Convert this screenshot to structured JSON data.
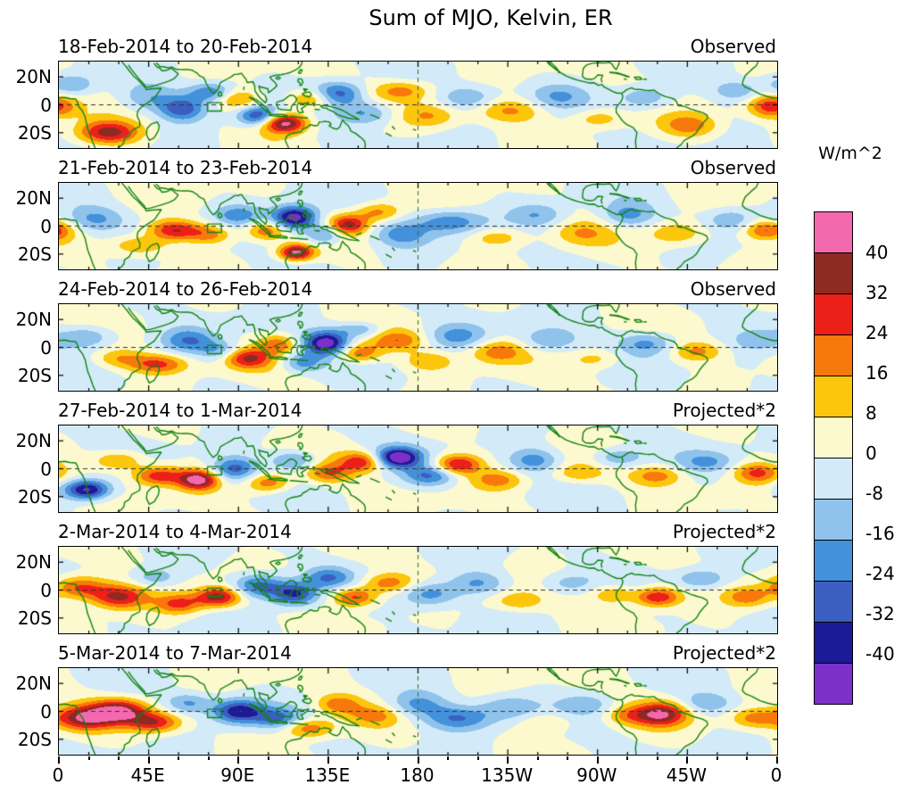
{
  "title": "Sum of MJO, Kelvin, ER",
  "chart_data": {
    "type": "heatmap",
    "subtype": "filled-contour-longitude-latitude-panels",
    "title": "Sum of MJO, Kelvin, ER",
    "unit": "W/m^2",
    "axes": {
      "x_ticks": [
        "0",
        "45E",
        "90E",
        "135E",
        "180",
        "135W",
        "90W",
        "45W",
        "0"
      ],
      "y_ticks": [
        "20N",
        "0",
        "20S"
      ],
      "lon_range": [
        0,
        360
      ],
      "lat_range": [
        -31,
        31
      ],
      "equator_dashed": true,
      "dateline_dashed": true
    },
    "colorbar": {
      "unit_label": "W/m^2",
      "tick_labels": [
        "40",
        "32",
        "24",
        "16",
        "8",
        "0",
        "-8",
        "-16",
        "-24",
        "-32",
        "-40"
      ],
      "levels": [
        40,
        32,
        24,
        16,
        8,
        0,
        -8,
        -16,
        -24,
        -32,
        -40
      ],
      "colors_high_to_low": [
        "#f468b0",
        "#8f2a22",
        "#ed2019",
        "#f8790b",
        "#fcc60d",
        "#fdf9cf",
        "#d3eaf8",
        "#8fc3ec",
        "#4491db",
        "#3b5fc0",
        "#1d1a96",
        "#7d30c9"
      ]
    },
    "map_style": {
      "coastline_color": "#128312",
      "marker_box": {
        "lon_min": 74.5,
        "lon_max": 81.5,
        "lat_min": -4.5,
        "lat_max": 1.5
      }
    },
    "feature_format": "lon_deg, lat_deg, peak_anomaly_wm2, sigma_lon_deg, sigma_lat_deg (approximate centers of filled-contour anomalies)",
    "panels": [
      {
        "date_range": "18-Feb-2014 to 20-Feb-2014",
        "type_label": "Observed",
        "features": [
          [
            25,
            -20,
            36,
            11,
            6
          ],
          [
            6,
            14,
            -18,
            9,
            6
          ],
          [
            45,
            5,
            -15,
            11,
            7
          ],
          [
            62,
            -3,
            -28,
            8,
            6
          ],
          [
            76,
            9,
            -24,
            8,
            5
          ],
          [
            90,
            4,
            20,
            8,
            5
          ],
          [
            100,
            -8,
            -34,
            7,
            5
          ],
          [
            113,
            -13,
            46,
            8,
            5
          ],
          [
            126,
            4,
            24,
            8,
            5
          ],
          [
            140,
            8,
            -30,
            9,
            6
          ],
          [
            154,
            -6,
            -20,
            10,
            6
          ],
          [
            172,
            10,
            18,
            10,
            5
          ],
          [
            186,
            -8,
            16,
            10,
            6
          ],
          [
            205,
            5,
            -16,
            10,
            6
          ],
          [
            226,
            -4,
            18,
            12,
            6
          ],
          [
            250,
            6,
            -13,
            10,
            6
          ],
          [
            270,
            -10,
            15,
            9,
            5
          ],
          [
            294,
            5,
            -18,
            10,
            6
          ],
          [
            316,
            -15,
            20,
            10,
            6
          ],
          [
            340,
            10,
            -15,
            8,
            5
          ],
          [
            357,
            -1,
            30,
            8,
            6
          ]
        ]
      },
      {
        "date_range": "21-Feb-2014 to 23-Feb-2014",
        "type_label": "Observed",
        "features": [
          [
            18,
            5,
            -16,
            10,
            6
          ],
          [
            40,
            -14,
            18,
            10,
            5
          ],
          [
            58,
            -3,
            32,
            9,
            5
          ],
          [
            76,
            -6,
            20,
            8,
            5
          ],
          [
            90,
            8,
            -20,
            8,
            5
          ],
          [
            104,
            -3,
            24,
            7,
            5
          ],
          [
            118,
            6,
            -48,
            8,
            6
          ],
          [
            119,
            -19,
            43,
            6,
            4
          ],
          [
            133,
            -6,
            -24,
            7,
            5
          ],
          [
            145,
            1,
            34,
            7,
            5
          ],
          [
            160,
            10,
            20,
            8,
            5
          ],
          [
            172,
            -6,
            -18,
            9,
            6
          ],
          [
            196,
            3,
            -22,
            12,
            6
          ],
          [
            220,
            -8,
            15,
            10,
            5
          ],
          [
            240,
            8,
            -15,
            10,
            6
          ],
          [
            262,
            -5,
            12,
            10,
            6
          ],
          [
            285,
            8,
            -18,
            9,
            6
          ],
          [
            310,
            -5,
            18,
            10,
            6
          ],
          [
            336,
            5,
            -15,
            9,
            6
          ],
          [
            355,
            -3,
            28,
            8,
            5
          ]
        ]
      },
      {
        "date_range": "24-Feb-2014 to 26-Feb-2014",
        "type_label": "Observed",
        "features": [
          [
            14,
            8,
            -18,
            10,
            6
          ],
          [
            30,
            -8,
            15,
            9,
            5
          ],
          [
            50,
            -12,
            26,
            10,
            5
          ],
          [
            65,
            5,
            -22,
            9,
            6
          ],
          [
            80,
            -2,
            -15,
            7,
            5
          ],
          [
            95,
            -8,
            30,
            8,
            5
          ],
          [
            110,
            2,
            22,
            7,
            5
          ],
          [
            122,
            -11,
            -20,
            7,
            5
          ],
          [
            134,
            3,
            -45,
            8,
            6
          ],
          [
            150,
            -4,
            25,
            8,
            5
          ],
          [
            151,
            13,
            -18,
            8,
            4
          ],
          [
            170,
            5,
            20,
            9,
            5
          ],
          [
            186,
            -10,
            15,
            9,
            5
          ],
          [
            200,
            8,
            -18,
            10,
            6
          ],
          [
            220,
            -3,
            21,
            10,
            6
          ],
          [
            245,
            5,
            -15,
            10,
            6
          ],
          [
            270,
            -8,
            12,
            9,
            5
          ],
          [
            295,
            3,
            -20,
            10,
            6
          ],
          [
            320,
            -3,
            18,
            9,
            5
          ],
          [
            350,
            5,
            -12,
            8,
            5
          ]
        ]
      },
      {
        "date_range": "27-Feb-2014 to 1-Mar-2014",
        "type_label": "Projected*2",
        "features": [
          [
            14,
            -15,
            -44,
            8,
            5
          ],
          [
            30,
            6,
            20,
            9,
            5
          ],
          [
            50,
            -5,
            30,
            9,
            5
          ],
          [
            70,
            -8,
            43,
            7,
            5
          ],
          [
            88,
            0,
            -28,
            8,
            6
          ],
          [
            105,
            -10,
            24,
            8,
            5
          ],
          [
            118,
            6,
            -20,
            8,
            5
          ],
          [
            135,
            -3,
            22,
            8,
            5
          ],
          [
            152,
            5,
            30,
            8,
            5
          ],
          [
            170,
            8,
            -46,
            8,
            5
          ],
          [
            186,
            -5,
            -24,
            9,
            5
          ],
          [
            200,
            3,
            34,
            8,
            5
          ],
          [
            220,
            -8,
            18,
            9,
            5
          ],
          [
            238,
            6,
            -20,
            9,
            6
          ],
          [
            260,
            -3,
            15,
            9,
            5
          ],
          [
            280,
            8,
            -18,
            9,
            5
          ],
          [
            300,
            -5,
            20,
            9,
            5
          ],
          [
            325,
            5,
            -15,
            9,
            5
          ],
          [
            350,
            -3,
            25,
            8,
            5
          ]
        ]
      },
      {
        "date_range": "2-Mar-2014 to 4-Mar-2014",
        "type_label": "Projected*2",
        "features": [
          [
            10,
            2,
            30,
            10,
            6
          ],
          [
            30,
            -5,
            34,
            10,
            6
          ],
          [
            48,
            9,
            -15,
            8,
            5
          ],
          [
            60,
            -10,
            25,
            8,
            5
          ],
          [
            80,
            -5,
            37,
            8,
            5
          ],
          [
            100,
            3,
            -30,
            9,
            6
          ],
          [
            118,
            -3,
            -34,
            8,
            6
          ],
          [
            135,
            9,
            -20,
            8,
            5
          ],
          [
            148,
            -5,
            30,
            8,
            5
          ],
          [
            165,
            5,
            22,
            9,
            5
          ],
          [
            186,
            -3,
            -22,
            10,
            6
          ],
          [
            210,
            5,
            -18,
            10,
            6
          ],
          [
            230,
            -8,
            15,
            9,
            5
          ],
          [
            255,
            5,
            -12,
            9,
            5
          ],
          [
            278,
            -3,
            18,
            8,
            5
          ],
          [
            300,
            -5,
            34,
            8,
            5
          ],
          [
            322,
            8,
            -18,
            9,
            5
          ],
          [
            345,
            -5,
            20,
            8,
            5
          ]
        ]
      },
      {
        "date_range": "5-Mar-2014 to 7-Mar-2014",
        "type_label": "Projected*2",
        "features": [
          [
            12,
            -5,
            34,
            10,
            6
          ],
          [
            30,
            0,
            42,
            10,
            6
          ],
          [
            48,
            -8,
            30,
            9,
            5
          ],
          [
            65,
            6,
            -18,
            8,
            5
          ],
          [
            90,
            0,
            -38,
            9,
            6
          ],
          [
            110,
            -5,
            -22,
            8,
            5
          ],
          [
            125,
            -12,
            25,
            9,
            5
          ],
          [
            140,
            5,
            20,
            8,
            5
          ],
          [
            158,
            -3,
            15,
            9,
            5
          ],
          [
            180,
            5,
            -18,
            10,
            6
          ],
          [
            200,
            -5,
            -24,
            12,
            6
          ],
          [
            225,
            3,
            -15,
            10,
            6
          ],
          [
            245,
            -8,
            12,
            9,
            5
          ],
          [
            265,
            5,
            -12,
            9,
            5
          ],
          [
            285,
            -3,
            15,
            8,
            5
          ],
          [
            302,
            -2,
            37,
            9,
            6
          ],
          [
            325,
            6,
            -15,
            9,
            5
          ],
          [
            348,
            -5,
            18,
            8,
            5
          ]
        ]
      }
    ]
  }
}
